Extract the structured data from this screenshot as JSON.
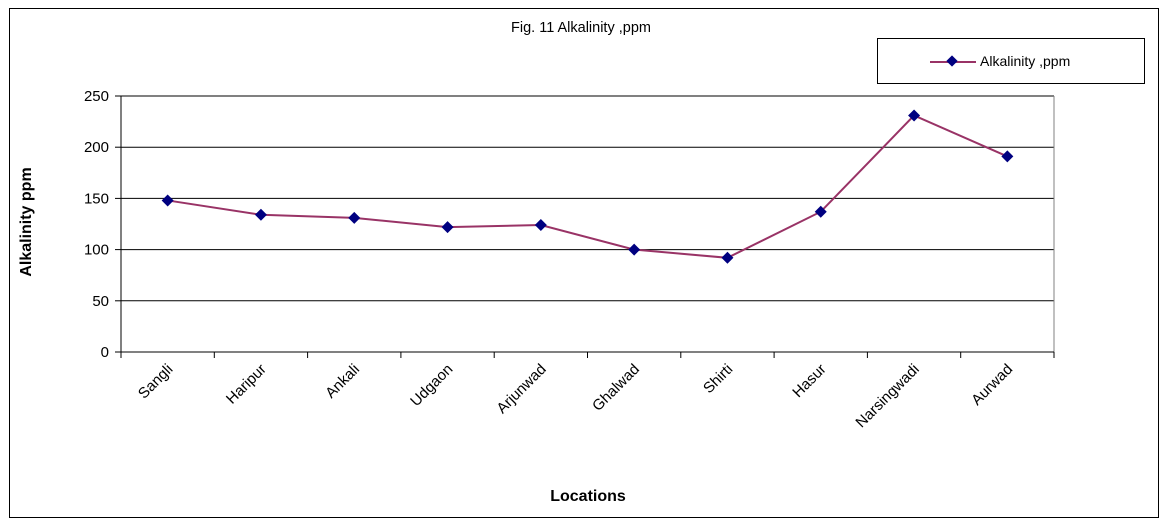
{
  "chart_data": {
    "type": "line",
    "title": "Fig. 11 Alkalinity ,ppm",
    "xlabel": "Locations",
    "ylabel": "Alkalinity ppm",
    "categories": [
      "Sangli",
      "Haripur",
      "Ankali",
      "Udgaon",
      "Arjunwad",
      "Ghalwad",
      "Shirti",
      "Hasur",
      "Narsingwadi",
      "Aurwad"
    ],
    "series": [
      {
        "name": "Alkalinity ,ppm",
        "values": [
          148,
          134,
          131,
          122,
          124,
          100,
          92,
          137,
          231,
          191
        ]
      }
    ],
    "ylim": [
      0,
      250
    ],
    "yticks": [
      0,
      50,
      100,
      150,
      200,
      250
    ],
    "grid": true,
    "legend_position": "top-right",
    "colors": {
      "line": "#993366",
      "marker": "#000080",
      "gridline": "#000000"
    }
  }
}
